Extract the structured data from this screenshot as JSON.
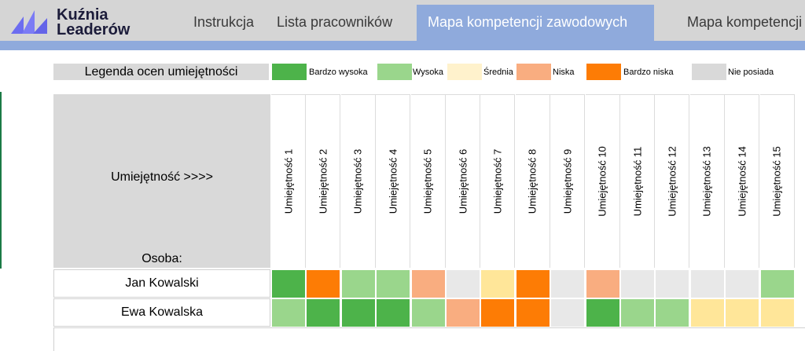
{
  "logo": {
    "line1": "Kuźnia",
    "line2": "Leaderów"
  },
  "tabs": [
    {
      "label": "Instrukcja"
    },
    {
      "label": "Lista pracowników"
    },
    {
      "label": "Mapa kompetencji zawodowych"
    },
    {
      "label": "Mapa kompetencji"
    }
  ],
  "legend": {
    "title": "Legenda ocen umiejętności",
    "items": [
      {
        "label": "Bardzo wysoka",
        "color": "#4db34a"
      },
      {
        "label": "Wysoka",
        "color": "#9ad68c"
      },
      {
        "label": "Średnia",
        "color": "#fff2cc"
      },
      {
        "label": "Niska",
        "color": "#f9ad80"
      },
      {
        "label": "Bardzo niska",
        "color": "#fd7c05"
      },
      {
        "label": "Nie posiada",
        "color": "#d9d9d9"
      }
    ]
  },
  "header": {
    "skill_label": "Umiejętność >>>>",
    "person_label": "Osoba:"
  },
  "skills": [
    "Umiejętność 1",
    "Umiejętność 2",
    "Umiejętność 3",
    "Umiejętność 4",
    "Umiejętność 5",
    "Umiejętność 6",
    "Umiejętność 7",
    "Umiejętność 8",
    "Umiejętność 9",
    "Umiejętność 10",
    "Umiejętność 11",
    "Umiejętność 12",
    "Umiejętność 13",
    "Umiejętność 14",
    "Umiejętność 15"
  ],
  "rating_colors": {
    "bardzo_wysoka": "#4db34a",
    "wysoka": "#9ad68c",
    "srednia": "#ffe699",
    "niska": "#f9ad80",
    "bardzo_niska": "#fd7c05",
    "nie_posiada": "#e8e8e8"
  },
  "people": [
    {
      "name": "Jan Kowalski",
      "ratings": [
        "bardzo_wysoka",
        "bardzo_niska",
        "wysoka",
        "wysoka",
        "niska",
        "nie_posiada",
        "srednia",
        "bardzo_niska",
        "nie_posiada",
        "niska",
        "nie_posiada",
        "nie_posiada",
        "nie_posiada",
        "nie_posiada",
        "wysoka"
      ]
    },
    {
      "name": "Ewa Kowalska",
      "ratings": [
        "wysoka",
        "bardzo_wysoka",
        "bardzo_wysoka",
        "bardzo_wysoka",
        "wysoka",
        "niska",
        "bardzo_niska",
        "bardzo_niska",
        "nie_posiada",
        "bardzo_wysoka",
        "wysoka",
        "wysoka",
        "srednia",
        "srednia",
        "srednia"
      ]
    }
  ]
}
